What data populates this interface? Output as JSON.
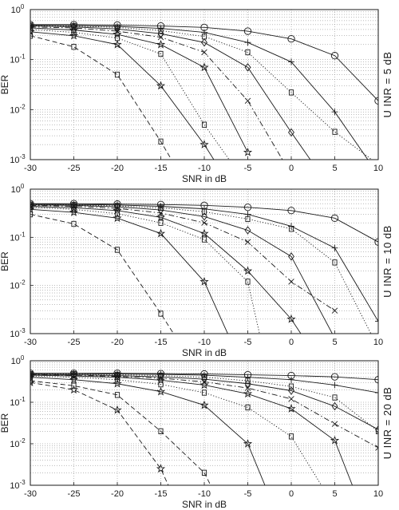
{
  "chart_data": [
    {
      "type": "line",
      "side_label": "U INR = 5 dB",
      "xlabel": "SNR in dB",
      "ylabel": "BER",
      "xlim": [
        -30,
        10
      ],
      "ylim": [
        0.001,
        1
      ],
      "yscale": "log",
      "grid": true,
      "x_ticks": [
        "-30",
        "-25",
        "-20",
        "-15",
        "-10",
        "-5",
        "0",
        "5",
        "10"
      ],
      "y_ticks": [
        "10-3",
        "10-2",
        "10-1",
        "100"
      ],
      "series": [
        {
          "marker": "circle",
          "style": "solid",
          "x": [
            -30,
            -25,
            -20,
            -15,
            -10,
            -5,
            0,
            5,
            10
          ],
          "y": [
            0.5,
            0.5,
            0.49,
            0.47,
            0.44,
            0.37,
            0.26,
            0.12,
            0.015
          ]
        },
        {
          "marker": "plus",
          "style": "solid",
          "x": [
            -30,
            -25,
            -20,
            -15,
            -10,
            -5,
            0,
            5,
            10
          ],
          "y": [
            0.49,
            0.48,
            0.46,
            0.42,
            0.35,
            0.22,
            0.09,
            0.009,
            0.0005
          ]
        },
        {
          "marker": "square",
          "style": "dotted",
          "x": [
            -30,
            -25,
            -20,
            -15,
            -10,
            -5,
            0,
            5,
            10
          ],
          "y": [
            0.48,
            0.47,
            0.44,
            0.38,
            0.29,
            0.14,
            0.022,
            0.0036,
            0.0008
          ]
        },
        {
          "marker": "diamond",
          "style": "solid",
          "x": [
            -30,
            -25,
            -20,
            -15,
            -10,
            -5,
            0,
            5
          ],
          "y": [
            0.47,
            0.45,
            0.41,
            0.33,
            0.22,
            0.07,
            0.0035,
            0.0002
          ]
        },
        {
          "marker": "x",
          "style": "dashdot",
          "x": [
            -30,
            -25,
            -20,
            -15,
            -10,
            -5,
            0
          ],
          "y": [
            0.45,
            0.43,
            0.37,
            0.28,
            0.14,
            0.015,
            0.0005
          ]
        },
        {
          "marker": "star",
          "style": "solid",
          "x": [
            -30,
            -25,
            -20,
            -15,
            -10,
            -5
          ],
          "y": [
            0.43,
            0.39,
            0.32,
            0.2,
            0.07,
            0.0014
          ]
        },
        {
          "marker": "square",
          "style": "dotted",
          "x": [
            -30,
            -25,
            -20,
            -15,
            -10,
            -5
          ],
          "y": [
            0.4,
            0.35,
            0.27,
            0.13,
            0.005,
            0.0003
          ]
        },
        {
          "marker": "star",
          "style": "solid",
          "x": [
            -30,
            -25,
            -20,
            -15,
            -10,
            -7
          ],
          "y": [
            0.36,
            0.3,
            0.2,
            0.03,
            0.002,
            0.0003
          ]
        },
        {
          "marker": "square",
          "style": "dashed",
          "x": [
            -30,
            -25,
            -20,
            -15,
            -12
          ],
          "y": [
            0.3,
            0.18,
            0.05,
            0.0023,
            0.0003
          ]
        }
      ]
    },
    {
      "type": "line",
      "side_label": "U INR = 10 dB",
      "xlabel": "SNR in dB",
      "ylabel": "BER",
      "xlim": [
        -30,
        10
      ],
      "ylim": [
        0.001,
        1
      ],
      "yscale": "log",
      "grid": true,
      "x_ticks": [
        "-30",
        "-25",
        "-20",
        "-15",
        "-10",
        "-5",
        "0",
        "5",
        "10"
      ],
      "y_ticks": [
        "10-3",
        "10-2",
        "10-1",
        "100"
      ],
      "series": [
        {
          "marker": "circle",
          "style": "solid",
          "x": [
            -30,
            -25,
            -20,
            -15,
            -10,
            -5,
            0,
            5,
            10
          ],
          "y": [
            0.5,
            0.5,
            0.49,
            0.48,
            0.46,
            0.42,
            0.36,
            0.25,
            0.08
          ]
        },
        {
          "marker": "plus",
          "style": "solid",
          "x": [
            -30,
            -25,
            -20,
            -15,
            -10,
            -5,
            0,
            5,
            10
          ],
          "y": [
            0.49,
            0.48,
            0.47,
            0.44,
            0.39,
            0.3,
            0.17,
            0.06,
            0.0018
          ]
        },
        {
          "marker": "square",
          "style": "dotted",
          "x": [
            -30,
            -25,
            -20,
            -15,
            -10,
            -5,
            0,
            5,
            10
          ],
          "y": [
            0.48,
            0.47,
            0.45,
            0.41,
            0.34,
            0.24,
            0.15,
            0.03,
            0.0005
          ]
        },
        {
          "marker": "diamond",
          "style": "solid",
          "x": [
            -30,
            -25,
            -20,
            -15,
            -10,
            -5,
            0,
            5
          ],
          "y": [
            0.47,
            0.46,
            0.43,
            0.37,
            0.27,
            0.14,
            0.04,
            0.0008
          ]
        },
        {
          "marker": "x",
          "style": "dashdot",
          "x": [
            -30,
            -25,
            -20,
            -15,
            -10,
            -5,
            0,
            5
          ],
          "y": [
            0.46,
            0.44,
            0.4,
            0.32,
            0.2,
            0.08,
            0.012,
            0.003
          ]
        },
        {
          "marker": "star",
          "style": "solid",
          "x": [
            -30,
            -25,
            -20,
            -15,
            -10,
            -5,
            0,
            3
          ],
          "y": [
            0.44,
            0.41,
            0.36,
            0.26,
            0.12,
            0.02,
            0.002,
            0.0003
          ]
        },
        {
          "marker": "square",
          "style": "dotted",
          "x": [
            -30,
            -25,
            -20,
            -15,
            -10,
            -5,
            -3
          ],
          "y": [
            0.42,
            0.38,
            0.31,
            0.2,
            0.09,
            0.012,
            0.0003
          ]
        },
        {
          "marker": "star",
          "style": "solid",
          "x": [
            -30,
            -25,
            -20,
            -15,
            -10,
            -6
          ],
          "y": [
            0.38,
            0.33,
            0.25,
            0.12,
            0.012,
            0.0003
          ]
        },
        {
          "marker": "square",
          "style": "dashed",
          "x": [
            -30,
            -25,
            -20,
            -15,
            -10
          ],
          "y": [
            0.3,
            0.19,
            0.055,
            0.0026,
            0.0001
          ]
        }
      ]
    },
    {
      "type": "line",
      "side_label": "U INR = 20 dB",
      "xlabel": "SNR in dB",
      "ylabel": "BER",
      "xlim": [
        -30,
        10
      ],
      "ylim": [
        0.001,
        1
      ],
      "yscale": "log",
      "grid": true,
      "x_ticks": [
        "-30",
        "-25",
        "-20",
        "-15",
        "-10",
        "-5",
        "0",
        "5",
        "10"
      ],
      "y_ticks": [
        "10-3",
        "10-2",
        "10-1",
        "100"
      ],
      "series": [
        {
          "marker": "circle",
          "style": "solid",
          "x": [
            -30,
            -25,
            -20,
            -15,
            -10,
            -5,
            0,
            5,
            10
          ],
          "y": [
            0.5,
            0.5,
            0.5,
            0.49,
            0.48,
            0.46,
            0.44,
            0.41,
            0.35
          ]
        },
        {
          "marker": "plus",
          "style": "solid",
          "x": [
            -30,
            -25,
            -20,
            -15,
            -10,
            -5,
            0,
            5,
            10
          ],
          "y": [
            0.49,
            0.49,
            0.48,
            0.47,
            0.45,
            0.4,
            0.35,
            0.26,
            0.17
          ]
        },
        {
          "marker": "square",
          "style": "dotted",
          "x": [
            -30,
            -25,
            -20,
            -15,
            -10,
            -5,
            0,
            5,
            10
          ],
          "y": [
            0.48,
            0.48,
            0.46,
            0.44,
            0.4,
            0.33,
            0.24,
            0.13,
            0.02
          ]
        },
        {
          "marker": "diamond",
          "style": "solid",
          "x": [
            -30,
            -25,
            -20,
            -15,
            -10,
            -5,
            0,
            5,
            10
          ],
          "y": [
            0.47,
            0.46,
            0.44,
            0.41,
            0.36,
            0.28,
            0.19,
            0.08,
            0.022
          ]
        },
        {
          "marker": "x",
          "style": "dashdot",
          "x": [
            -30,
            -25,
            -20,
            -15,
            -10,
            -5,
            0,
            5,
            10
          ],
          "y": [
            0.46,
            0.45,
            0.42,
            0.38,
            0.31,
            0.22,
            0.12,
            0.03,
            0.008
          ]
        },
        {
          "marker": "star",
          "style": "solid",
          "x": [
            -30,
            -25,
            -20,
            -15,
            -10,
            -5,
            0,
            5,
            8
          ],
          "y": [
            0.45,
            0.43,
            0.4,
            0.34,
            0.26,
            0.16,
            0.07,
            0.012,
            0.0003
          ]
        },
        {
          "marker": "square",
          "style": "dotted",
          "x": [
            -30,
            -25,
            -20,
            -15,
            -10,
            -5,
            0,
            5
          ],
          "y": [
            0.43,
            0.4,
            0.35,
            0.27,
            0.17,
            0.075,
            0.015,
            0.0003
          ]
        },
        {
          "marker": "star",
          "style": "solid",
          "x": [
            -30,
            -25,
            -20,
            -15,
            -10,
            -5,
            -2
          ],
          "y": [
            0.4,
            0.35,
            0.28,
            0.18,
            0.085,
            0.01,
            0.0003
          ]
        },
        {
          "marker": "square",
          "style": "dashed",
          "x": [
            -30,
            -25,
            -20,
            -15,
            -10,
            -8
          ],
          "y": [
            0.33,
            0.25,
            0.15,
            0.02,
            0.002,
            0.0003
          ]
        },
        {
          "marker": "star",
          "style": "dashed",
          "x": [
            -30,
            -25,
            -20,
            -15,
            -13
          ],
          "y": [
            0.3,
            0.2,
            0.065,
            0.0025,
            0.0003
          ]
        }
      ]
    }
  ]
}
